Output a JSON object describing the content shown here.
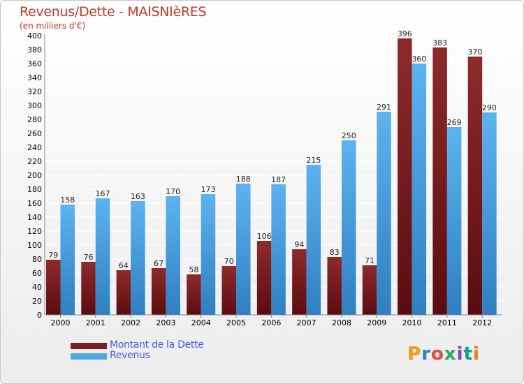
{
  "title": "Revenus/Dette - MAISNIèRES",
  "subtitle": "(en milliers d'€)",
  "colors": {
    "title": "#c0392b",
    "dette": "#7a1f22",
    "revenus": "#4ea8e8",
    "legend_text": "#4a5bdc",
    "grid": "#ffffff"
  },
  "legend": {
    "items": [
      {
        "label": "Montant de la Dette",
        "color": "#7a1f22"
      },
      {
        "label": "Revenus",
        "color": "#4ea8e8"
      }
    ],
    "placement": "bottom-left"
  },
  "logo": {
    "text": "Proxiti",
    "letter_colors": [
      "#f39c12",
      "#2e86c1",
      "#e74c3c",
      "#27ae60",
      "#8e44ad",
      "#16a085",
      "#e67e22"
    ]
  },
  "chart_data": {
    "type": "bar",
    "categories": [
      "2000",
      "2001",
      "2002",
      "2003",
      "2004",
      "2005",
      "2006",
      "2007",
      "2008",
      "2009",
      "2010",
      "2011",
      "2012"
    ],
    "series": [
      {
        "name": "Montant de la Dette",
        "values": [
          79,
          76,
          64,
          67,
          58,
          70,
          106,
          94,
          83,
          71,
          396,
          383,
          370
        ]
      },
      {
        "name": "Revenus",
        "values": [
          158,
          167,
          163,
          170,
          173,
          188,
          187,
          215,
          250,
          291,
          360,
          269,
          290
        ]
      }
    ],
    "title": "Revenus/Dette - MAISNIèRES",
    "xlabel": "",
    "ylabel": "",
    "ylim": [
      0,
      400
    ],
    "yticks": [
      0,
      20,
      40,
      60,
      80,
      100,
      120,
      140,
      160,
      180,
      200,
      220,
      240,
      260,
      280,
      300,
      320,
      340,
      360,
      380,
      400
    ],
    "grid": true
  }
}
